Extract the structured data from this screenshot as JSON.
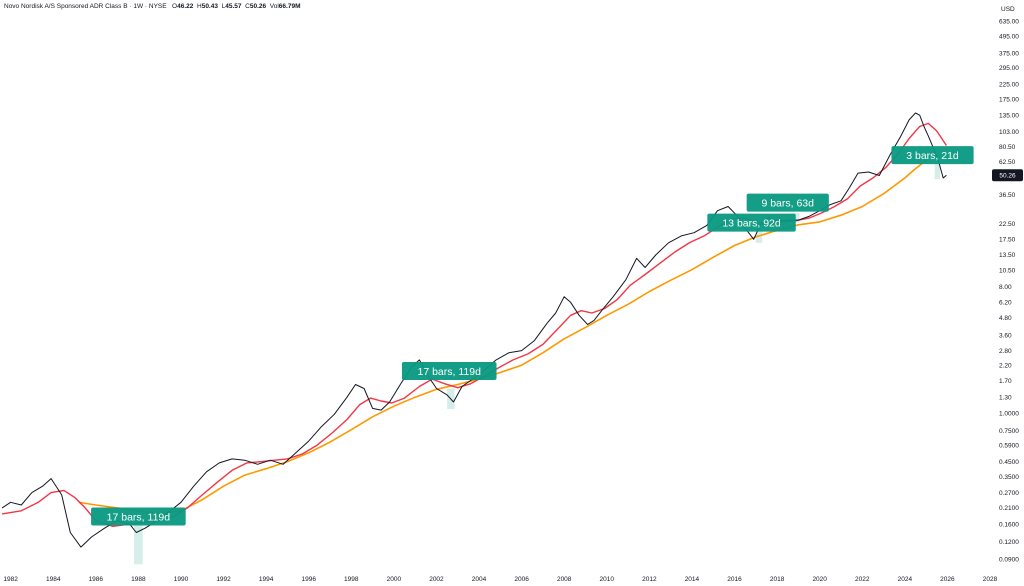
{
  "header": {
    "symbol": "Novo Nordisk A/S Sponsored ADR Class B",
    "timeframe": "1W",
    "exchange": "NYSE",
    "o_label": "O",
    "o_value": "46.22",
    "h_label": "H",
    "h_value": "50.43",
    "l_label": "L",
    "l_value": "45.57",
    "c_label": "C",
    "c_value": "50.26",
    "vol_label": "Vol",
    "vol_value": "66.79M"
  },
  "currency": "USD",
  "colors": {
    "price": "#131722",
    "ma_short": "#f23645",
    "ma_long": "#ff9800",
    "annotation": "#089981",
    "drawdown_fill": "#d6eee9",
    "last_price_bg": "#131722"
  },
  "chart_data": {
    "type": "line",
    "y_scale": "log",
    "ylim": [
      0.078,
      900
    ],
    "xlim": [
      1981.5,
      2028.0
    ],
    "last_price": "50.26",
    "y_ticks": [
      "0.0900",
      "0.1200",
      "0.1600",
      "0.2100",
      "0.2700",
      "0.3500",
      "0.4500",
      "0.5900",
      "0.7500",
      "1.0000",
      "1.30",
      "1.70",
      "2.20",
      "2.80",
      "3.60",
      "4.80",
      "6.20",
      "8.00",
      "10.50",
      "13.50",
      "17.50",
      "22.50",
      "36.50",
      "62.50",
      "80.50",
      "103.00",
      "135.00",
      "175.00",
      "225.00",
      "295.00",
      "375.00",
      "495.00",
      "635.00",
      "815.00"
    ],
    "x_ticks": [
      "1982",
      "1984",
      "1986",
      "1988",
      "1990",
      "1992",
      "1994",
      "1996",
      "1998",
      "2000",
      "2002",
      "2004",
      "2006",
      "2008",
      "2010",
      "2012",
      "2014",
      "2016",
      "2018",
      "2020",
      "2022",
      "2024",
      "2026",
      "2028"
    ],
    "series": [
      {
        "name": "",
        "role": "price",
        "x": [
          1981.6,
          1982.0,
          1982.5,
          1983.0,
          1983.5,
          1983.9,
          1984.4,
          1984.8,
          1985.3,
          1985.8,
          1986.4,
          1987.0,
          1987.6,
          1987.9,
          1988.3,
          1988.9,
          1989.5,
          1990.0,
          1990.6,
          1991.2,
          1991.8,
          1992.4,
          1993.0,
          1993.6,
          1994.2,
          1994.8,
          1995.4,
          1996.0,
          1996.6,
          1997.2,
          1997.8,
          1998.2,
          1998.6,
          1999.0,
          1999.4,
          1999.8,
          2000.3,
          2000.8,
          2001.2,
          2001.6,
          2002.0,
          2002.5,
          2002.8,
          2003.2,
          2003.7,
          2004.2,
          2004.8,
          2005.4,
          2006.0,
          2006.6,
          2007.2,
          2007.6,
          2008.0,
          2008.3,
          2008.7,
          2009.1,
          2009.4,
          2009.8,
          2010.3,
          2010.9,
          2011.4,
          2011.8,
          2012.3,
          2012.9,
          2013.5,
          2014.1,
          2014.7,
          2015.2,
          2015.7,
          2016.1,
          2016.5,
          2016.9,
          2017.2,
          2017.6,
          2018.0,
          2018.5,
          2019.0,
          2019.5,
          2020.0,
          2020.5,
          2021.0,
          2021.4,
          2021.8,
          2022.3,
          2022.8,
          2023.3,
          2023.8,
          2024.2,
          2024.5,
          2024.7,
          2024.9,
          2025.1,
          2025.4,
          2025.6,
          2025.8,
          2025.95
        ],
        "values": [
          0.21,
          0.23,
          0.22,
          0.27,
          0.3,
          0.34,
          0.26,
          0.14,
          0.11,
          0.13,
          0.15,
          0.17,
          0.16,
          0.14,
          0.15,
          0.17,
          0.2,
          0.23,
          0.3,
          0.38,
          0.44,
          0.47,
          0.46,
          0.43,
          0.46,
          0.43,
          0.52,
          0.63,
          0.8,
          0.98,
          1.3,
          1.6,
          1.5,
          1.08,
          1.05,
          1.2,
          1.6,
          2.1,
          2.4,
          1.85,
          1.5,
          1.35,
          1.2,
          1.55,
          1.75,
          2.0,
          2.4,
          2.7,
          2.8,
          3.3,
          4.4,
          5.2,
          6.8,
          6.2,
          5.0,
          4.3,
          4.6,
          5.5,
          6.8,
          9.0,
          12.8,
          11.0,
          13.5,
          16.5,
          18.5,
          19.5,
          22.0,
          28.0,
          30.0,
          26.0,
          21.0,
          17.5,
          22.0,
          25.0,
          23.5,
          24.0,
          24.0,
          25.5,
          28.0,
          31.0,
          33.0,
          41.0,
          52.0,
          53.0,
          50.0,
          70.0,
          95.0,
          125.0,
          140.0,
          135.0,
          112.0,
          96.0,
          75.0,
          62.0,
          48.0,
          50.26
        ]
      },
      {
        "name": "",
        "role": "ma_short",
        "x": [
          1981.6,
          1982.5,
          1983.3,
          1983.9,
          1984.5,
          1985.0,
          1985.5,
          1986.0,
          1986.8,
          1987.5,
          1988.2,
          1988.9,
          1989.6,
          1990.3,
          1991.0,
          1991.7,
          1992.4,
          1993.1,
          1993.8,
          1994.4,
          1995.0,
          1995.7,
          1996.4,
          1997.1,
          1997.8,
          1998.4,
          1998.9,
          1999.4,
          1999.9,
          2000.5,
          2001.2,
          2001.8,
          2002.4,
          2003.0,
          2003.6,
          2004.2,
          2004.9,
          2005.6,
          2006.3,
          2007.0,
          2007.7,
          2008.3,
          2008.8,
          2009.3,
          2009.9,
          2010.5,
          2011.1,
          2011.8,
          2012.5,
          2013.2,
          2013.9,
          2014.6,
          2015.3,
          2015.9,
          2016.5,
          2017.1,
          2017.7,
          2018.3,
          2018.9,
          2019.5,
          2020.1,
          2020.7,
          2021.3,
          2021.9,
          2022.5,
          2023.1,
          2023.7,
          2024.2,
          2024.7,
          2025.1,
          2025.5,
          2025.95
        ],
        "values": [
          0.19,
          0.2,
          0.23,
          0.27,
          0.28,
          0.25,
          0.21,
          0.17,
          0.155,
          0.16,
          0.165,
          0.17,
          0.18,
          0.21,
          0.26,
          0.32,
          0.39,
          0.44,
          0.45,
          0.46,
          0.47,
          0.51,
          0.59,
          0.72,
          0.9,
          1.15,
          1.28,
          1.22,
          1.18,
          1.28,
          1.55,
          1.75,
          1.62,
          1.52,
          1.62,
          1.82,
          2.1,
          2.4,
          2.65,
          3.1,
          4.0,
          5.0,
          5.4,
          5.2,
          5.6,
          6.5,
          8.2,
          9.8,
          11.8,
          14.2,
          16.6,
          18.6,
          21.8,
          24.5,
          24.8,
          23.0,
          22.8,
          23.2,
          23.8,
          24.8,
          27.0,
          30.0,
          34.0,
          42.0,
          48.0,
          57.0,
          72.0,
          92.0,
          112.0,
          118.0,
          104.0,
          82.0
        ]
      },
      {
        "name": "",
        "role": "ma_long",
        "x": [
          1985.2,
          1986.0,
          1987.0,
          1988.0,
          1989.0,
          1990.0,
          1991.0,
          1992.0,
          1993.0,
          1994.0,
          1995.0,
          1996.0,
          1997.0,
          1998.0,
          1999.0,
          2000.0,
          2001.0,
          2002.0,
          2003.0,
          2004.0,
          2005.0,
          2006.0,
          2007.0,
          2008.0,
          2009.0,
          2010.0,
          2011.0,
          2012.0,
          2013.0,
          2014.0,
          2015.0,
          2016.0,
          2017.0,
          2018.0,
          2019.0,
          2020.0,
          2021.0,
          2022.0,
          2023.0,
          2024.0,
          2024.5,
          2025.0
        ],
        "values": [
          0.23,
          0.22,
          0.21,
          0.2,
          0.19,
          0.2,
          0.24,
          0.3,
          0.36,
          0.4,
          0.45,
          0.52,
          0.62,
          0.76,
          0.94,
          1.12,
          1.3,
          1.48,
          1.6,
          1.75,
          1.95,
          2.2,
          2.7,
          3.4,
          4.1,
          5.0,
          6.0,
          7.4,
          8.9,
          10.6,
          13.0,
          15.8,
          18.2,
          20.3,
          22.2,
          23.3,
          26.0,
          30.0,
          37.0,
          48.0,
          56.0,
          64.0
        ]
      }
    ],
    "drawdowns": [
      {
        "label": "17 bars, 119d",
        "x_start": 1987.8,
        "x_end": 1988.2,
        "y_top": 0.165,
        "y_bottom": 0.083,
        "label_x": 1988.0,
        "label_y": 0.182
      },
      {
        "label": "17 bars, 119d",
        "x_start": 2002.5,
        "x_end": 2002.85,
        "y_top": 1.5,
        "y_bottom": 1.07,
        "label_x": 2002.6,
        "label_y": 2.0
      },
      {
        "label": "13 bars, 92d",
        "x_start": 2017.0,
        "x_end": 2017.3,
        "y_top": 21.0,
        "y_bottom": 16.5,
        "label_x": 2016.8,
        "label_y": 23.0
      },
      {
        "label": "9 bars, 63d",
        "x_start": 2018.8,
        "x_end": 2019.05,
        "y_top": 27.0,
        "y_bottom": 23.0,
        "label_x": 2018.5,
        "label_y": 32.0
      },
      {
        "label": "3 bars, 21d",
        "x_start": 2025.4,
        "x_end": 2025.65,
        "y_top": 62.0,
        "y_bottom": 47.0,
        "label_x": 2025.3,
        "label_y": 70.0
      }
    ]
  }
}
